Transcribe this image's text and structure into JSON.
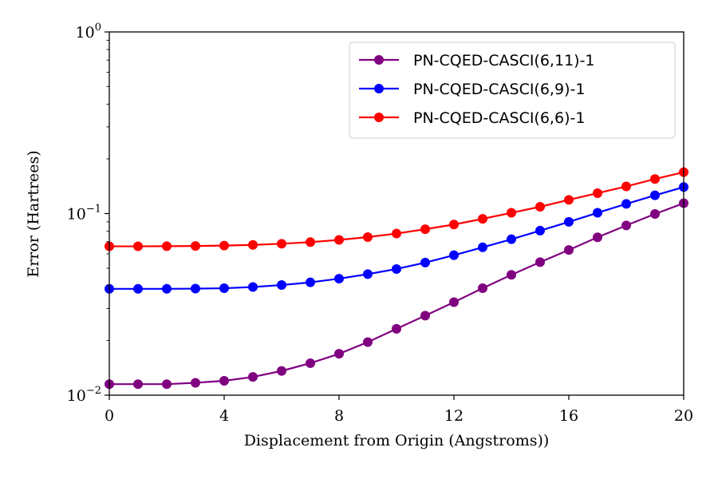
{
  "chart_data": {
    "type": "line",
    "xlabel": "Displacement from Origin (Angstroms))",
    "ylabel": "Error (Hartrees)",
    "xlim": [
      0,
      20
    ],
    "ylim": [
      0.01,
      1
    ],
    "yscale": "log",
    "grid": false,
    "legend_position": "top-right",
    "x_ticks": [
      0,
      4,
      8,
      12,
      16,
      20
    ],
    "y_ticks": [
      {
        "value": 0.01,
        "base": "10",
        "exp": "−2"
      },
      {
        "value": 0.1,
        "base": "10",
        "exp": "−1"
      },
      {
        "value": 1,
        "base": "10",
        "exp": "0"
      }
    ],
    "x": [
      0,
      1,
      2,
      3,
      4,
      5,
      6,
      7,
      8,
      9,
      10,
      11,
      12,
      13,
      14,
      15,
      16,
      17,
      18,
      19,
      20
    ],
    "series": [
      {
        "name": "PN-CQED-CASCI(6,11)-1",
        "color": "#800080",
        "values": [
          0.0115,
          0.0115,
          0.0115,
          0.0117,
          0.012,
          0.0126,
          0.0136,
          0.015,
          0.0169,
          0.0196,
          0.0232,
          0.0274,
          0.0325,
          0.0388,
          0.046,
          0.054,
          0.063,
          0.074,
          0.086,
          0.0995,
          0.114
        ]
      },
      {
        "name": "PN-CQED-CASCI(6,9)-1",
        "color": "#0000ff",
        "values": [
          0.0385,
          0.0385,
          0.0385,
          0.0386,
          0.0388,
          0.0394,
          0.0404,
          0.0418,
          0.0438,
          0.0464,
          0.0495,
          0.0537,
          0.059,
          0.0652,
          0.0722,
          0.0805,
          0.09,
          0.101,
          0.113,
          0.126,
          0.14
        ]
      },
      {
        "name": "PN-CQED-CASCI(6,6)-1",
        "color": "#ff0000",
        "values": [
          0.066,
          0.066,
          0.0661,
          0.0663,
          0.0666,
          0.0672,
          0.0682,
          0.0696,
          0.0716,
          0.0742,
          0.0776,
          0.082,
          0.087,
          0.0935,
          0.101,
          0.109,
          0.119,
          0.1295,
          0.141,
          0.155,
          0.169
        ]
      }
    ]
  }
}
